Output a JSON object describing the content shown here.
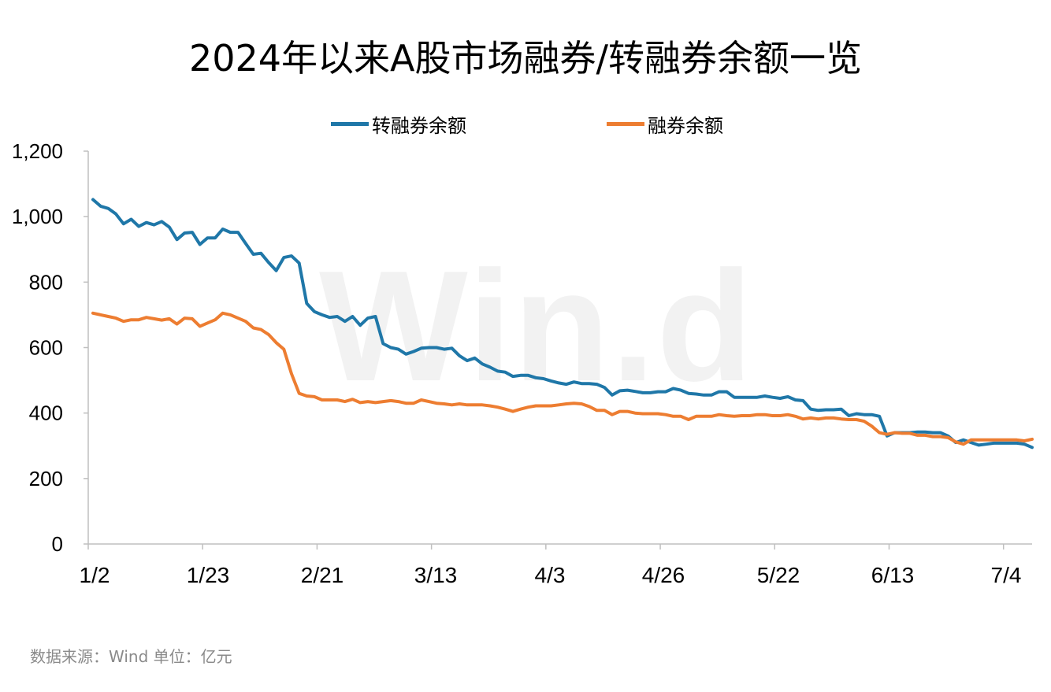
{
  "chart_data": {
    "type": "line",
    "title": "2024年以来A股市场融券/转融券余额一览",
    "source_note": "数据来源：Wind 单位：亿元",
    "watermark": "Win.d",
    "ylim": [
      0,
      1200
    ],
    "yticks": [
      "0",
      "200",
      "400",
      "600",
      "800",
      "1,000",
      "1,200"
    ],
    "x_tick_labels": [
      "1/2",
      "1/23",
      "2/21",
      "3/13",
      "4/3",
      "4/26",
      "5/22",
      "6/13",
      "7/4"
    ],
    "legend_position": "top",
    "grid": false,
    "colors": {
      "转融券余额": "#1f77a8",
      "融券余额": "#ed7d31"
    },
    "series": [
      {
        "name": "转融券余额",
        "color": "#1f77a8",
        "values": [
          1052,
          1032,
          1025,
          1008,
          978,
          992,
          970,
          982,
          975,
          985,
          968,
          930,
          950,
          952,
          915,
          935,
          935,
          962,
          952,
          952,
          918,
          885,
          888,
          860,
          835,
          875,
          880,
          858,
          735,
          710,
          700,
          692,
          695,
          680,
          695,
          668,
          690,
          695,
          612,
          600,
          595,
          580,
          588,
          598,
          600,
          600,
          595,
          598,
          575,
          560,
          568,
          550,
          540,
          528,
          525,
          512,
          515,
          515,
          508,
          505,
          498,
          492,
          488,
          495,
          490,
          490,
          488,
          478,
          455,
          468,
          470,
          466,
          462,
          462,
          465,
          465,
          475,
          470,
          460,
          458,
          455,
          455,
          465,
          465,
          448,
          448,
          448,
          448,
          452,
          448,
          445,
          450,
          440,
          438,
          412,
          408,
          410,
          410,
          412,
          392,
          398,
          395,
          395,
          390,
          330,
          340,
          340,
          340,
          342,
          342,
          340,
          340,
          330,
          310,
          318,
          310,
          302,
          305,
          308,
          308,
          308,
          308,
          305,
          295
        ]
      },
      {
        "name": "融券余额",
        "color": "#ed7d31",
        "values": [
          705,
          700,
          695,
          690,
          680,
          685,
          685,
          692,
          688,
          684,
          688,
          672,
          690,
          688,
          665,
          675,
          685,
          705,
          700,
          690,
          680,
          660,
          655,
          640,
          615,
          595,
          520,
          460,
          452,
          450,
          440,
          440,
          440,
          435,
          442,
          432,
          435,
          432,
          435,
          438,
          435,
          430,
          430,
          440,
          435,
          430,
          428,
          425,
          428,
          425,
          425,
          425,
          422,
          418,
          412,
          405,
          412,
          418,
          422,
          422,
          422,
          425,
          428,
          430,
          428,
          420,
          408,
          408,
          395,
          405,
          405,
          400,
          398,
          398,
          398,
          395,
          390,
          390,
          380,
          390,
          390,
          390,
          395,
          392,
          390,
          392,
          392,
          395,
          395,
          392,
          392,
          395,
          390,
          382,
          385,
          382,
          385,
          385,
          382,
          380,
          380,
          375,
          360,
          340,
          335,
          340,
          338,
          338,
          332,
          332,
          328,
          328,
          325,
          312,
          305,
          318,
          318,
          318,
          318,
          318,
          318,
          318,
          315,
          320
        ]
      }
    ]
  }
}
